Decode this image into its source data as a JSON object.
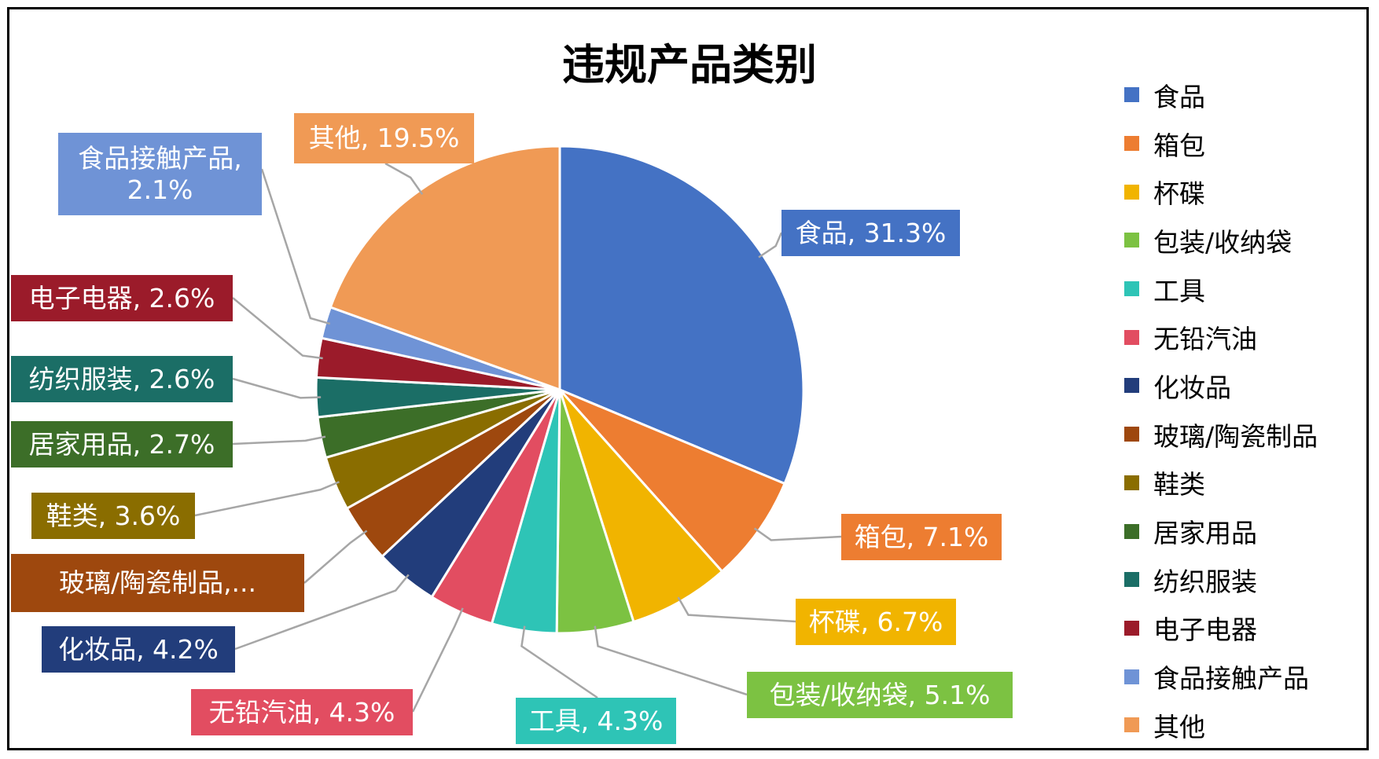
{
  "chart_data": {
    "type": "pie",
    "title": "违规产品类别",
    "legend_position": "right",
    "slices": [
      {
        "name": "食品",
        "value": 31.3,
        "label": "食品, 31.3%",
        "color": "#4472C4"
      },
      {
        "name": "箱包",
        "value": 7.1,
        "label": "箱包, 7.1%",
        "color": "#ED7D31"
      },
      {
        "name": "杯碟",
        "value": 6.7,
        "label": "杯碟, 6.7%",
        "color": "#F1B400"
      },
      {
        "name": "包装/收纳袋",
        "value": 5.1,
        "label": "包装/收纳袋, 5.1%",
        "color": "#7CC242"
      },
      {
        "name": "工具",
        "value": 4.3,
        "label": "工具, 4.3%",
        "color": "#2EC4B6"
      },
      {
        "name": "无铅汽油",
        "value": 4.3,
        "label": "无铅汽油, 4.3%",
        "color": "#E24D61"
      },
      {
        "name": "化妆品",
        "value": 4.2,
        "label": "化妆品, 4.2%",
        "color": "#223D7B"
      },
      {
        "name": "玻璃/陶瓷制品",
        "value": 3.9,
        "label": "玻璃/陶瓷制品,...",
        "color": "#9E480E"
      },
      {
        "name": "鞋类",
        "value": 3.6,
        "label": "鞋类, 3.6%",
        "color": "#8A6D00"
      },
      {
        "name": "居家用品",
        "value": 2.7,
        "label": "居家用品, 2.7%",
        "color": "#3C6E28"
      },
      {
        "name": "纺织服装",
        "value": 2.6,
        "label": "纺织服装, 2.6%",
        "color": "#1B6E66"
      },
      {
        "name": "电子电器",
        "value": 2.6,
        "label": "电子电器, 2.6%",
        "color": "#9B1B2A"
      },
      {
        "name": "食品接触产品",
        "value": 2.1,
        "label": "食品接触产品, 2.1%",
        "label_lines": [
          "食品接触产品,",
          "2.1%"
        ],
        "color": "#6F93D6"
      },
      {
        "name": "其他",
        "value": 19.5,
        "label": "其他, 19.5%",
        "color": "#F09A55"
      }
    ]
  }
}
